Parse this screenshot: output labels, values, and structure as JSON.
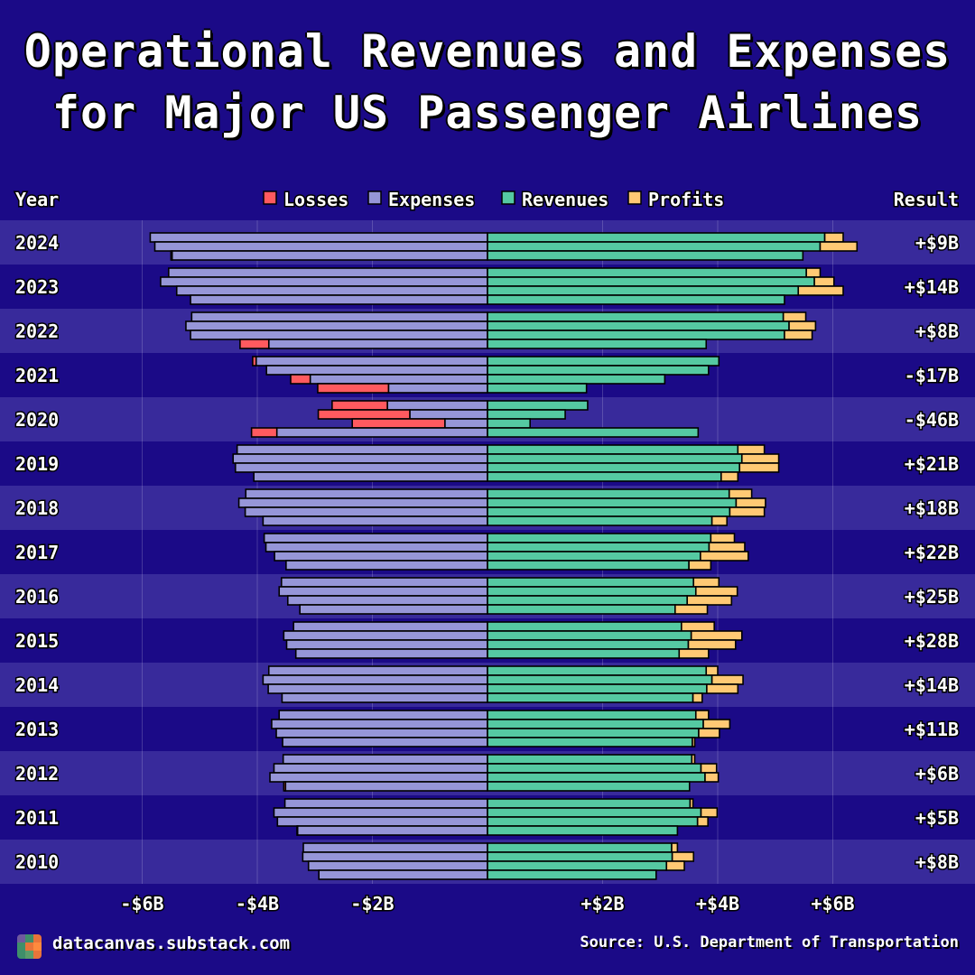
{
  "title": {
    "line1": "Operational Revenues and Expenses",
    "line2": "for Major US Passenger Airlines"
  },
  "header": {
    "year_label": "Year",
    "result_label": "Result"
  },
  "footer": {
    "site": "datacanvas.substack.com",
    "source": "Source: U.S. Department of Transportation"
  },
  "colors": {
    "background": "#1b0a87",
    "band_light": "#382a9b",
    "losses": "#ff5a5f",
    "expenses": "#9696d8",
    "revenues": "#55c9a2",
    "profits": "#ffc974"
  },
  "chart_data": {
    "type": "bar",
    "subtype": "diverging horizontal quarterly bars (expenses left, revenues right)",
    "legend": [
      {
        "name": "Losses",
        "color": "#ff5a5f"
      },
      {
        "name": "Expenses",
        "color": "#9696d8"
      },
      {
        "name": "Revenues",
        "color": "#55c9a2"
      },
      {
        "name": "Profits",
        "color": "#ffc974"
      }
    ],
    "legend_position": "top-center",
    "xlim": [
      -6.5,
      6.5
    ],
    "x_ticks": [
      {
        "value": -6,
        "label": "-$6B"
      },
      {
        "value": -4,
        "label": "-$4B"
      },
      {
        "value": -2,
        "label": "-$2B"
      },
      {
        "value": 2,
        "label": "+$2B"
      },
      {
        "value": 4,
        "label": "+$4B"
      },
      {
        "value": 6,
        "label": "+$6B"
      }
    ],
    "grid": true,
    "units": "$B per quarter",
    "quarter_order_top_to_bottom": [
      "Q4",
      "Q3",
      "Q2",
      "Q1"
    ],
    "years": [
      {
        "year": "2024",
        "result": "+$9B",
        "quarters": {
          "Q1": [
            5.5,
            5.48
          ],
          "Q2": [
            5.78,
            6.42
          ],
          "Q3": [
            5.86,
            6.18
          ]
        }
      },
      {
        "year": "2023",
        "result": "+$14B",
        "quarters": {
          "Q1": [
            5.16,
            5.16
          ],
          "Q2": [
            5.4,
            6.18
          ],
          "Q3": [
            5.68,
            6.02
          ],
          "Q4": [
            5.54,
            5.78
          ]
        }
      },
      {
        "year": "2022",
        "result": "+$8B",
        "quarters": {
          "Q1": [
            4.3,
            3.8
          ],
          "Q2": [
            5.16,
            5.64
          ],
          "Q3": [
            5.24,
            5.7
          ],
          "Q4": [
            5.14,
            5.53
          ]
        }
      },
      {
        "year": "2021",
        "result": "-$17B",
        "quarters": {
          "Q1": [
            2.95,
            1.72
          ],
          "Q2": [
            3.42,
            3.08
          ],
          "Q3": [
            3.84,
            3.84
          ],
          "Q4": [
            4.08,
            4.02
          ]
        }
      },
      {
        "year": "2020",
        "result": "-$46B",
        "quarters": {
          "Q1": [
            4.1,
            3.66
          ],
          "Q2": [
            2.35,
            0.74
          ],
          "Q3": [
            2.94,
            1.35
          ],
          "Q4": [
            2.7,
            1.74
          ]
        }
      },
      {
        "year": "2019",
        "result": "+$21B",
        "quarters": {
          "Q1": [
            4.06,
            4.35
          ],
          "Q2": [
            4.38,
            5.06
          ],
          "Q3": [
            4.42,
            5.06
          ],
          "Q4": [
            4.35,
            4.81
          ]
        }
      },
      {
        "year": "2018",
        "result": "+$18B",
        "quarters": {
          "Q1": [
            3.9,
            4.16
          ],
          "Q2": [
            4.21,
            4.81
          ],
          "Q3": [
            4.32,
            4.83
          ],
          "Q4": [
            4.2,
            4.59
          ]
        }
      },
      {
        "year": "2017",
        "result": "+$22B",
        "quarters": {
          "Q1": [
            3.5,
            3.88
          ],
          "Q2": [
            3.7,
            4.53
          ],
          "Q3": [
            3.85,
            4.47
          ],
          "Q4": [
            3.88,
            4.29
          ]
        }
      },
      {
        "year": "2016",
        "result": "+$25B",
        "quarters": {
          "Q1": [
            3.26,
            3.82
          ],
          "Q2": [
            3.47,
            4.24
          ],
          "Q3": [
            3.62,
            4.34
          ],
          "Q4": [
            3.58,
            4.02
          ]
        }
      },
      {
        "year": "2015",
        "result": "+$28B",
        "quarters": {
          "Q1": [
            3.33,
            3.84
          ],
          "Q2": [
            3.49,
            4.31
          ],
          "Q3": [
            3.54,
            4.42
          ],
          "Q4": [
            3.37,
            3.94
          ]
        }
      },
      {
        "year": "2014",
        "result": "+$14B",
        "quarters": {
          "Q1": [
            3.57,
            3.73
          ],
          "Q2": [
            3.81,
            4.35
          ],
          "Q3": [
            3.9,
            4.44
          ],
          "Q4": [
            3.8,
            4.0
          ]
        }
      },
      {
        "year": "2013",
        "result": "+$11B",
        "quarters": {
          "Q1": [
            3.56,
            3.6
          ],
          "Q2": [
            3.67,
            4.03
          ],
          "Q3": [
            3.75,
            4.21
          ],
          "Q4": [
            3.62,
            3.84
          ]
        }
      },
      {
        "year": "2012",
        "result": "+$6B",
        "quarters": {
          "Q1": [
            3.54,
            3.51
          ],
          "Q2": [
            3.78,
            4.01
          ],
          "Q3": [
            3.71,
            3.98
          ],
          "Q4": [
            3.55,
            3.6
          ]
        }
      },
      {
        "year": "2011",
        "result": "+$5B",
        "quarters": {
          "Q1": [
            3.31,
            3.3
          ],
          "Q2": [
            3.65,
            3.83
          ],
          "Q3": [
            3.71,
            3.99
          ],
          "Q4": [
            3.52,
            3.57
          ]
        }
      },
      {
        "year": "2010",
        "result": "+$8B",
        "quarters": {
          "Q1": [
            2.93,
            2.93
          ],
          "Q2": [
            3.11,
            3.42
          ],
          "Q3": [
            3.21,
            3.58
          ],
          "Q4": [
            3.2,
            3.3
          ]
        }
      }
    ],
    "quarter_value_format": "[expenses, revenues]"
  }
}
